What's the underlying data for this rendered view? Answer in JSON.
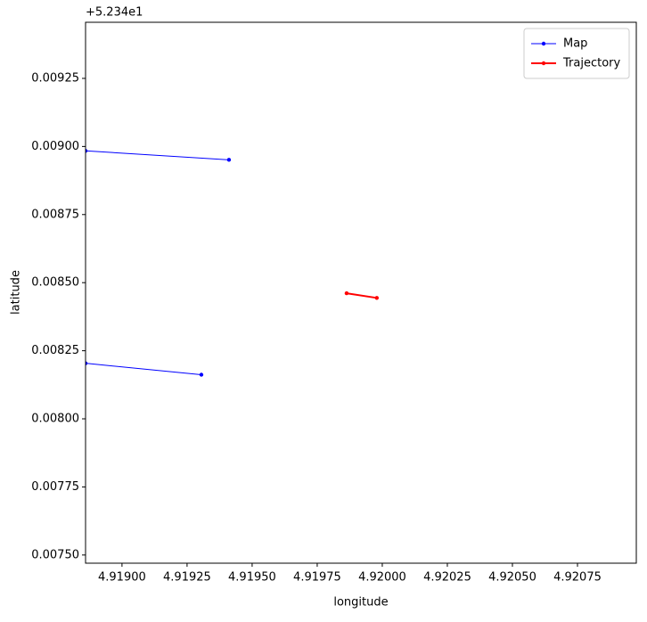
{
  "chart_data": {
    "type": "line",
    "x_label": "longitude",
    "y_label": "latitude",
    "y_offset": "+5.234e1",
    "xlim": [
      4.91886,
      4.920976
    ],
    "ylim": [
      0.00747,
      0.009456
    ],
    "xticks": [
      {
        "value": 4.919,
        "label": "4.91900"
      },
      {
        "value": 4.91925,
        "label": "4.91925"
      },
      {
        "value": 4.9195,
        "label": "4.91950"
      },
      {
        "value": 4.91975,
        "label": "4.91975"
      },
      {
        "value": 4.92,
        "label": "4.92000"
      },
      {
        "value": 4.92025,
        "label": "4.92025"
      },
      {
        "value": 4.9205,
        "label": "4.92050"
      },
      {
        "value": 4.92075,
        "label": "4.92075"
      }
    ],
    "yticks": [
      {
        "value": 0.0075,
        "label": "0.00750"
      },
      {
        "value": 0.00775,
        "label": "0.00775"
      },
      {
        "value": 0.008,
        "label": "0.00800"
      },
      {
        "value": 0.00825,
        "label": "0.00825"
      },
      {
        "value": 0.0085,
        "label": "0.00850"
      },
      {
        "value": 0.00875,
        "label": "0.00875"
      },
      {
        "value": 0.009,
        "label": "0.00900"
      },
      {
        "value": 0.00925,
        "label": "0.00925"
      }
    ],
    "legend": "upper right",
    "series": [
      {
        "name": "Map",
        "color": "#0000ff",
        "width": 1,
        "x": [
          4.91886,
          4.919411,
          null,
          4.91886,
          4.919305
        ],
        "values": [
          0.008984,
          0.008951,
          null,
          0.008204,
          0.008162
        ]
      },
      {
        "name": "Trajectory",
        "color": "#ff0000",
        "width": 2,
        "x": [
          4.919863,
          4.919979
        ],
        "values": [
          0.008461,
          0.008444
        ]
      }
    ]
  }
}
